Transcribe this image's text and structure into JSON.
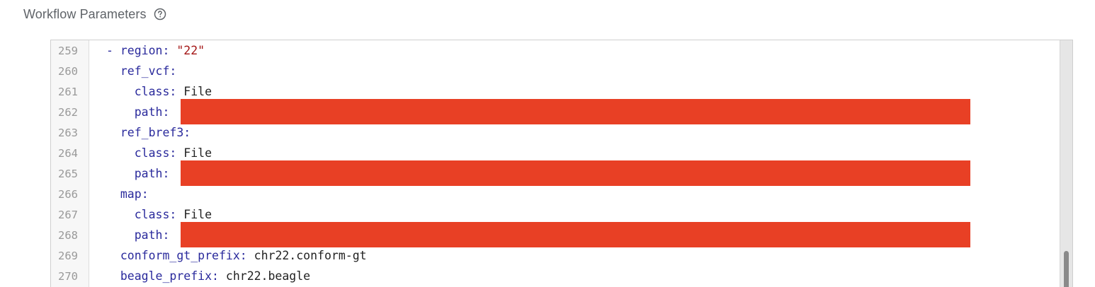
{
  "section": {
    "title": "Workflow Parameters",
    "help_icon": "help-circle-icon"
  },
  "editor": {
    "lines": [
      {
        "number": "259",
        "indent": "",
        "dash": "- ",
        "key": "region",
        "sep": ": ",
        "value": "\"22\"",
        "value_type": "string",
        "redacted": false
      },
      {
        "number": "260",
        "indent": "  ",
        "dash": "",
        "key": "ref_vcf",
        "sep": ":",
        "value": "",
        "value_type": "none",
        "redacted": false
      },
      {
        "number": "261",
        "indent": "    ",
        "dash": "",
        "key": "class",
        "sep": ": ",
        "value": "File",
        "value_type": "plain",
        "redacted": false
      },
      {
        "number": "262",
        "indent": "    ",
        "dash": "",
        "key": "path",
        "sep": ":",
        "value": "",
        "value_type": "none",
        "redacted": true
      },
      {
        "number": "263",
        "indent": "  ",
        "dash": "",
        "key": "ref_bref3",
        "sep": ":",
        "value": "",
        "value_type": "none",
        "redacted": false
      },
      {
        "number": "264",
        "indent": "    ",
        "dash": "",
        "key": "class",
        "sep": ": ",
        "value": "File",
        "value_type": "plain",
        "redacted": false
      },
      {
        "number": "265",
        "indent": "    ",
        "dash": "",
        "key": "path",
        "sep": ":",
        "value": "",
        "value_type": "none",
        "redacted": true
      },
      {
        "number": "266",
        "indent": "  ",
        "dash": "",
        "key": "map",
        "sep": ":",
        "value": "",
        "value_type": "none",
        "redacted": false
      },
      {
        "number": "267",
        "indent": "    ",
        "dash": "",
        "key": "class",
        "sep": ": ",
        "value": "File",
        "value_type": "plain",
        "redacted": false
      },
      {
        "number": "268",
        "indent": "    ",
        "dash": "",
        "key": "path",
        "sep": ":",
        "value": "",
        "value_type": "none",
        "redacted": true
      },
      {
        "number": "269",
        "indent": "  ",
        "dash": "",
        "key": "conform_gt_prefix",
        "sep": ": ",
        "value": "chr22.conform-gt",
        "value_type": "plain",
        "redacted": false
      },
      {
        "number": "270",
        "indent": "  ",
        "dash": "",
        "key": "beagle_prefix",
        "sep": ": ",
        "value": "chr22.beagle",
        "value_type": "plain",
        "redacted": false
      }
    ]
  },
  "colors": {
    "key": "#2a2a9c",
    "string": "#a31515",
    "redaction": "#e84025"
  }
}
